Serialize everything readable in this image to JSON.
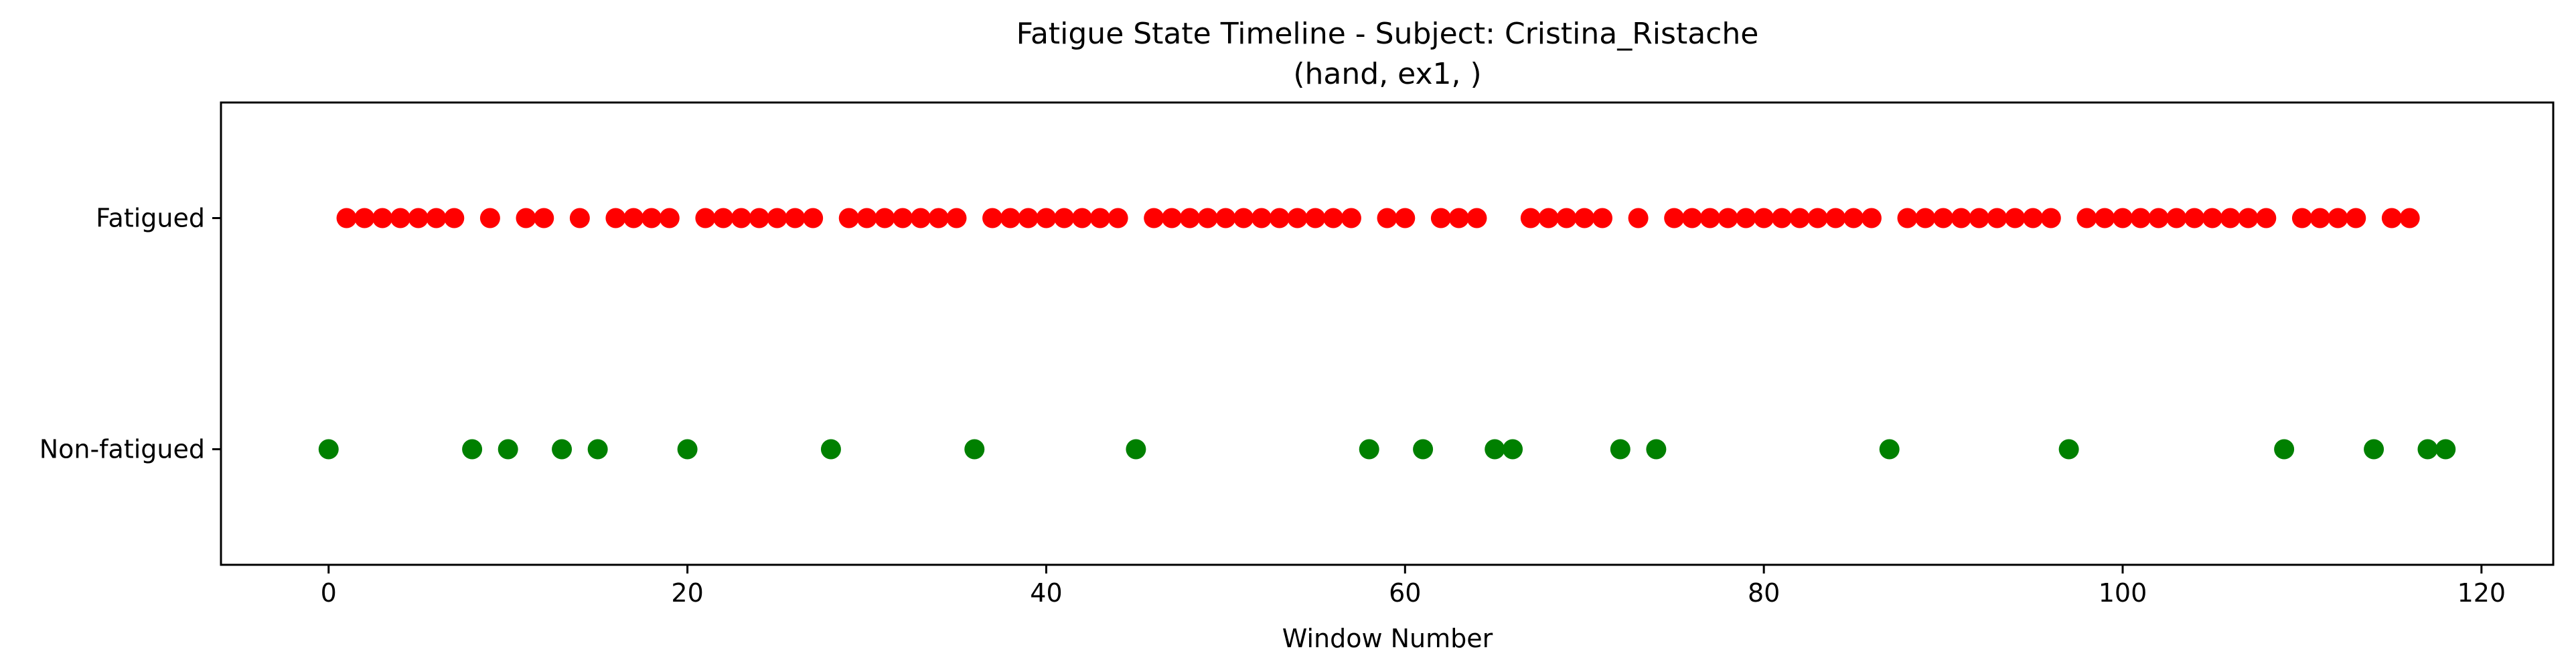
{
  "chart_data": {
    "type": "scatter",
    "title": "Fatigue State Timeline - Subject: Cristina_Ristache",
    "subtitle": "(hand, ex1, )",
    "xlabel": "Window Number",
    "ylabel": "",
    "xlim": [
      -6,
      124
    ],
    "ylim": [
      -0.5,
      1.5
    ],
    "x_ticks": [
      0,
      20,
      40,
      60,
      80,
      100,
      120
    ],
    "y_ticks": [
      0,
      1
    ],
    "y_tick_labels": [
      "Non-fatigued",
      "Fatigued"
    ],
    "grid": false,
    "series": [
      {
        "y": 1,
        "color": "#ff0000",
        "x": [
          1,
          2,
          3,
          4,
          5,
          6,
          7,
          9,
          11,
          12,
          14,
          16,
          17,
          18,
          19,
          21,
          22,
          23,
          24,
          25,
          26,
          27,
          29,
          30,
          31,
          32,
          33,
          34,
          35,
          37,
          38,
          39,
          40,
          41,
          42,
          43,
          44,
          46,
          47,
          48,
          49,
          50,
          51,
          52,
          53,
          54,
          55,
          56,
          57,
          59,
          60,
          62,
          63,
          64,
          67,
          68,
          69,
          70,
          71,
          73,
          75,
          76,
          77,
          78,
          79,
          80,
          81,
          82,
          83,
          84,
          85,
          86,
          88,
          89,
          90,
          91,
          92,
          93,
          94,
          95,
          96,
          98,
          99,
          100,
          101,
          102,
          103,
          104,
          105,
          106,
          107,
          108,
          110,
          111,
          112,
          113,
          115,
          116
        ]
      },
      {
        "y": 0,
        "color": "#008000",
        "x": [
          0,
          8,
          10,
          13,
          15,
          20,
          28,
          36,
          45,
          58,
          61,
          65,
          66,
          72,
          74,
          87,
          97,
          109,
          114,
          117,
          118
        ]
      }
    ]
  }
}
